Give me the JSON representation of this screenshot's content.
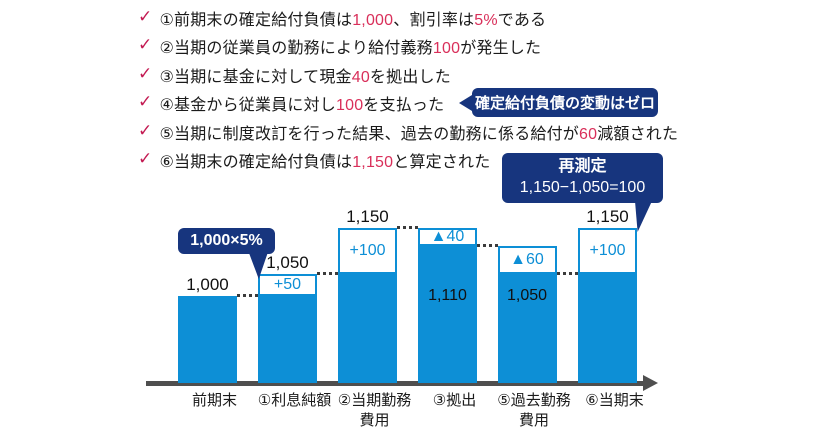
{
  "colors": {
    "bar_blue": "#0d8fd6",
    "callout_navy": "#17357e",
    "check_red": "#c31a52",
    "number_red": "#d92f5a",
    "axis_gray": "#4f4f4f",
    "text_black": "#1b1b1b"
  },
  "checklist": {
    "check_glyph": "✓",
    "items": [
      {
        "segments": [
          {
            "t": "①前期末の確定給付負債は"
          },
          {
            "t": "1,000",
            "red": true
          },
          {
            "t": "、割引率は"
          },
          {
            "t": "5%",
            "red": true
          },
          {
            "t": "である"
          }
        ]
      },
      {
        "segments": [
          {
            "t": "②当期の従業員の勤務により給付義務"
          },
          {
            "t": "100",
            "red": true
          },
          {
            "t": "が発生した"
          }
        ]
      },
      {
        "segments": [
          {
            "t": "③当期に基金に対して現金"
          },
          {
            "t": "40",
            "red": true
          },
          {
            "t": "を拠出した"
          }
        ]
      },
      {
        "segments": [
          {
            "t": "④基金から従業員に対し"
          },
          {
            "t": "100",
            "red": true
          },
          {
            "t": "を支払った"
          }
        ]
      },
      {
        "segments": [
          {
            "t": "⑤当期に制度改訂を行った結果、過去の勤務に係る給付が"
          },
          {
            "t": "60",
            "red": true
          },
          {
            "t": "減額された"
          }
        ]
      },
      {
        "segments": [
          {
            "t": "⑥当期末の確定給付負債は"
          },
          {
            "t": "1,150",
            "red": true
          },
          {
            "t": "と算定された"
          }
        ]
      }
    ]
  },
  "callouts": {
    "zero_change": "確定給付負債の変動はゼロ",
    "interest_formula": "1,000×5%",
    "remeasurement": {
      "title": "再測定",
      "formula": "1,150−1,050=100"
    }
  },
  "chart_data": {
    "type": "bar",
    "title": "確定給付負債の変動",
    "categories": [
      "前期末",
      "①利息純額",
      "②当期勤務費用",
      "③拠出",
      "⑤過去勤務費用",
      "⑥当期末"
    ],
    "values": [
      1000,
      1050,
      1150,
      1110,
      1050,
      1150
    ],
    "xlabel": "",
    "ylabel": "",
    "axis_style": "horizontal-arrow, no y-axis, schematic (not to scale)",
    "bars": [
      {
        "category": "前期末",
        "total": 1000,
        "top_label": "1,000",
        "segments": [
          {
            "type": "solid",
            "from": 0,
            "to": 1000
          }
        ]
      },
      {
        "category": "①利息純額",
        "total": 1050,
        "top_label": "1,050",
        "segments": [
          {
            "type": "solid",
            "from": 0,
            "to": 1000
          },
          {
            "type": "box",
            "text": "+50",
            "from": 1000,
            "to": 1050
          }
        ]
      },
      {
        "category": "②当期勤務\n費用",
        "total": 1150,
        "top_label": "1,150",
        "segments": [
          {
            "type": "solid",
            "from": 0,
            "to": 1050
          },
          {
            "type": "box",
            "text": "+100",
            "from": 1050,
            "to": 1150
          }
        ]
      },
      {
        "category": "③拠出",
        "total": 1110,
        "inner_label": "1,110",
        "segments": [
          {
            "type": "solid",
            "from": 0,
            "to": 1110
          },
          {
            "type": "box",
            "text": "▲40",
            "from": 1110,
            "to": 1150
          }
        ]
      },
      {
        "category": "⑤過去勤務\n費用",
        "total": 1050,
        "inner_label": "1,050",
        "segments": [
          {
            "type": "solid",
            "from": 0,
            "to": 1050
          },
          {
            "type": "box",
            "text": "▲60",
            "from": 1050,
            "to": 1110
          }
        ]
      },
      {
        "category": "⑥当期末",
        "total": 1150,
        "top_label": "1,150",
        "segments": [
          {
            "type": "solid",
            "from": 0,
            "to": 1050
          },
          {
            "type": "box",
            "text": "+100",
            "from": 1050,
            "to": 1150
          }
        ]
      }
    ],
    "connectors": [
      {
        "after_bar": 0,
        "level": 1000
      },
      {
        "after_bar": 1,
        "level": 1050
      },
      {
        "after_bar": 2,
        "level": 1150
      },
      {
        "after_bar": 3,
        "level": 1110
      },
      {
        "after_bar": 4,
        "level": 1050
      }
    ]
  }
}
